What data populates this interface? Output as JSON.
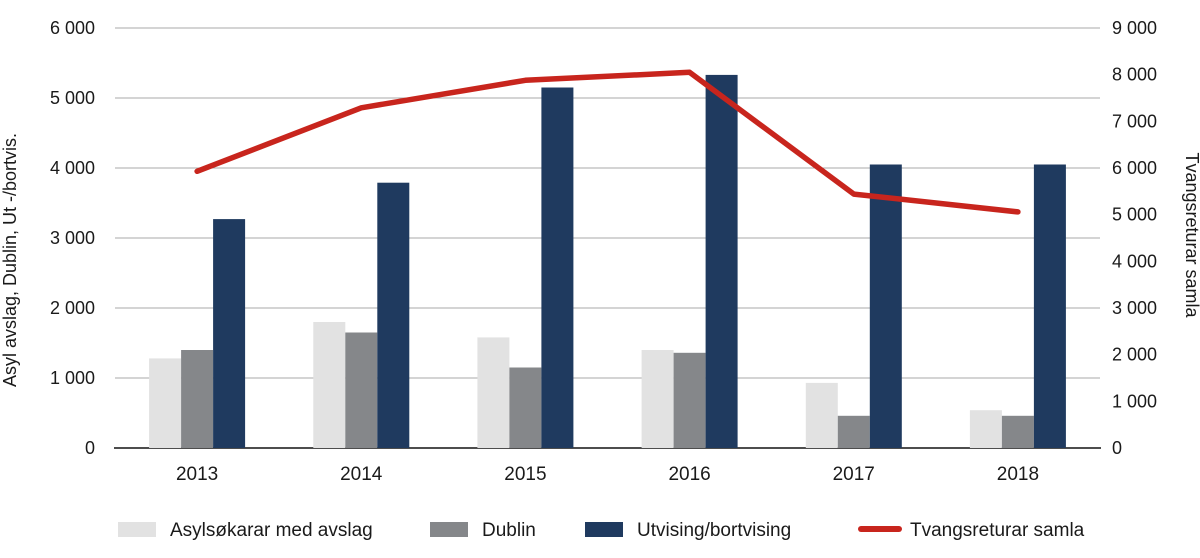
{
  "chart_data": {
    "type": "bar+line combo",
    "categories": [
      "2013",
      "2014",
      "2015",
      "2016",
      "2017",
      "2018"
    ],
    "series": [
      {
        "name": "Asylsøkarar med avslag",
        "type": "bar",
        "axis": "left",
        "color": "#e2e2e2",
        "values": [
          1280,
          1800,
          1580,
          1400,
          930,
          540
        ]
      },
      {
        "name": "Dublin",
        "type": "bar",
        "axis": "left",
        "color": "#85878a",
        "values": [
          1400,
          1650,
          1150,
          1360,
          460,
          460
        ]
      },
      {
        "name": "Utvising/bortvising",
        "type": "bar",
        "axis": "left",
        "color": "#1f3a5f",
        "values": [
          3270,
          3790,
          5150,
          5330,
          4050,
          4050
        ]
      },
      {
        "name": "Tvangsreturar samla",
        "type": "line",
        "axis": "right",
        "color": "#c8251d",
        "values": [
          5930,
          7290,
          7880,
          8050,
          5440,
          5060
        ]
      }
    ],
    "left_axis": {
      "label": "Asyl avslag, Dublin, Ut  -/bortvis.",
      "min": 0,
      "max": 6000,
      "step": 1000
    },
    "right_axis": {
      "label": "Tvangsreturar samla",
      "min": 0,
      "max": 9000,
      "step": 1000
    },
    "grid": "horizontal",
    "legend_position": "bottom"
  }
}
